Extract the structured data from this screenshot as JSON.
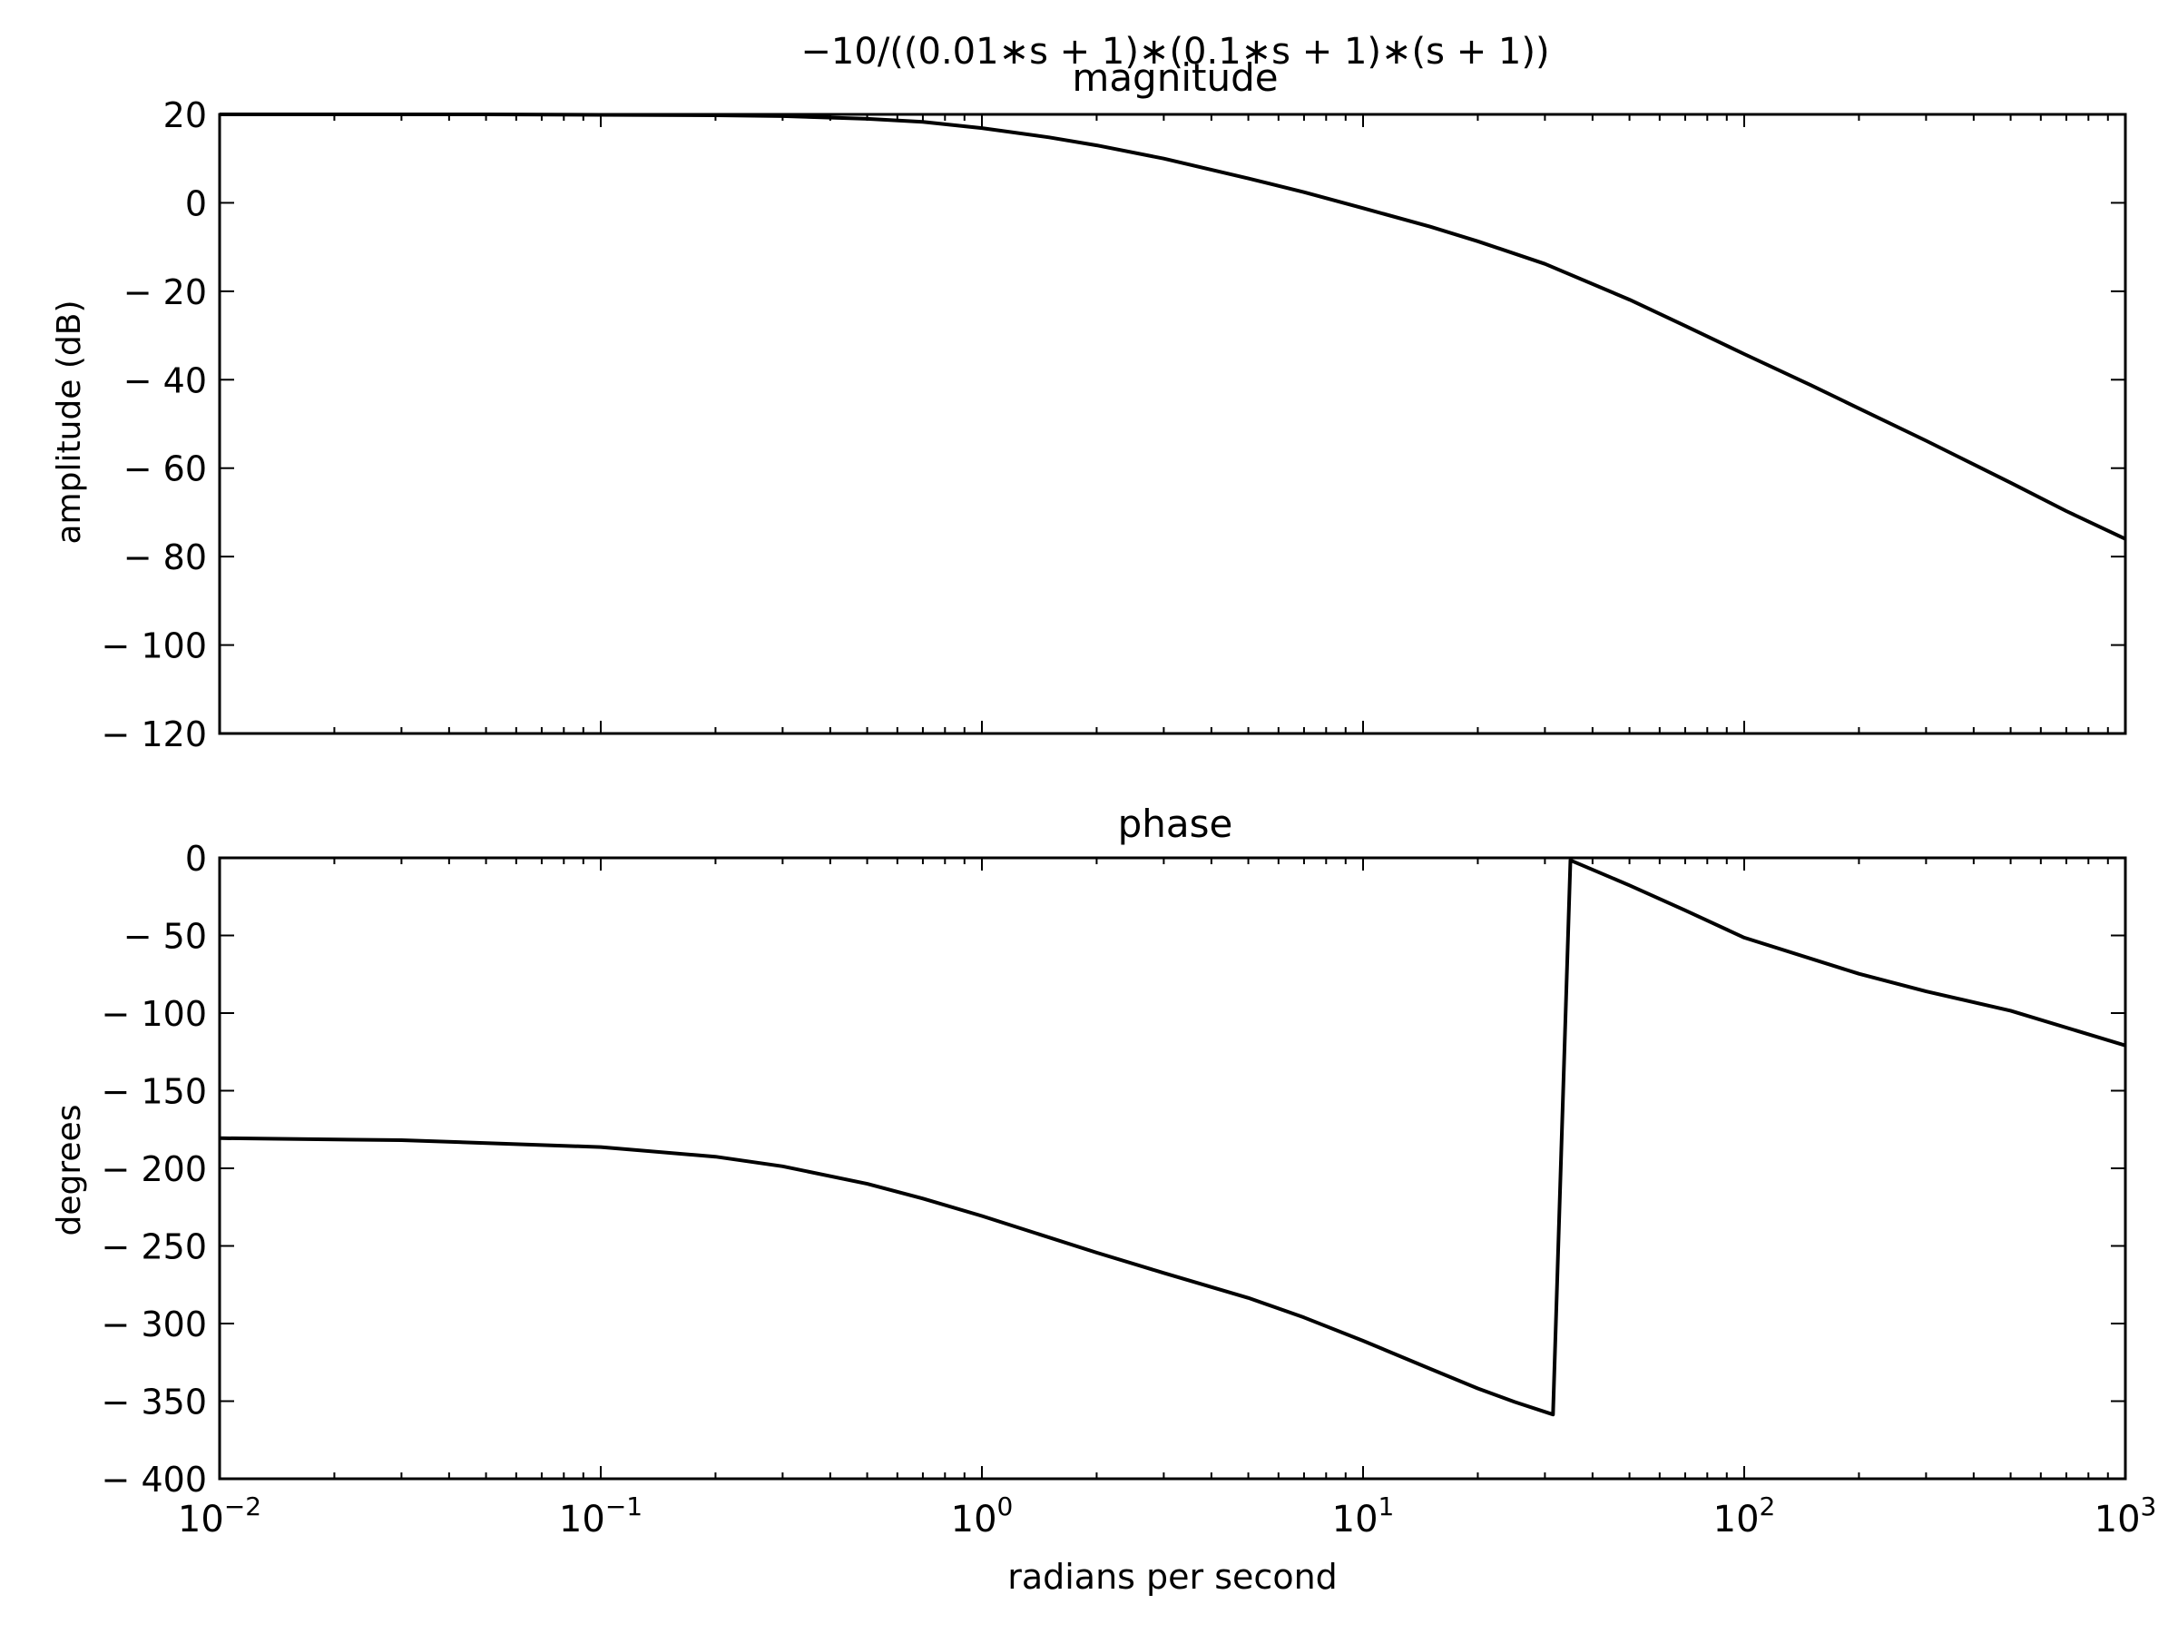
{
  "figure": {
    "suptitle": "−10/((0.01∗s + 1)∗(0.1∗s + 1)∗(s + 1))",
    "xlabel": "radians per second"
  },
  "chart_data": [
    {
      "type": "line",
      "title": "magnitude",
      "xlabel": "",
      "ylabel": "amplitude (dB)",
      "xscale": "log",
      "xlim": [
        0.01,
        1000
      ],
      "ylim": [
        -120,
        20
      ],
      "grid": false,
      "x_tick_labels_visible": false,
      "yticks": [
        20,
        0,
        -20,
        -40,
        -60,
        -80,
        -100,
        -120
      ],
      "ytick_labels": [
        "20",
        "0",
        "− 20",
        "− 40",
        "− 60",
        "− 80",
        "− 100",
        "− 120"
      ],
      "series": [
        {
          "color": "#000000",
          "x": [
            0.01,
            0.02,
            0.05,
            0.1,
            0.2,
            0.3,
            0.5,
            0.7,
            1,
            1.5,
            2,
            3,
            5,
            7,
            10,
            15,
            20,
            30,
            50,
            70,
            100,
            150,
            200,
            300,
            500,
            700,
            1000
          ],
          "y": [
            20.0,
            20.0,
            20.0,
            19.9,
            19.8,
            19.6,
            19.0,
            18.3,
            16.9,
            14.8,
            13.0,
            10.0,
            5.5,
            2.4,
            -1.2,
            -5.4,
            -8.7,
            -13.8,
            -21.9,
            -27.8,
            -34.2,
            -41.3,
            -46.5,
            -53.8,
            -63.3,
            -69.7,
            -76.0
          ]
        }
      ]
    },
    {
      "type": "line",
      "title": "phase",
      "xlabel": "radians per second",
      "ylabel": "degrees",
      "xscale": "log",
      "xlim": [
        0.01,
        1000
      ],
      "ylim": [
        -400,
        0
      ],
      "grid": false,
      "xticks": [
        0.01,
        0.1,
        1,
        10,
        100,
        1000
      ],
      "xtick_labels": [
        {
          "base": "10",
          "exp": "−2"
        },
        {
          "base": "10",
          "exp": "−1"
        },
        {
          "base": "10",
          "exp": "0"
        },
        {
          "base": "10",
          "exp": "1"
        },
        {
          "base": "10",
          "exp": "2"
        },
        {
          "base": "10",
          "exp": "3"
        }
      ],
      "yticks": [
        0,
        -50,
        -100,
        -150,
        -200,
        -250,
        -300,
        -350,
        -400
      ],
      "ytick_labels": [
        "0",
        "− 50",
        "− 100",
        "− 150",
        "− 200",
        "− 250",
        "− 300",
        "− 350",
        "− 400"
      ],
      "series": [
        {
          "color": "#000000",
          "x": [
            0.01,
            0.03,
            0.1,
            0.2,
            0.3,
            0.5,
            0.7,
            1,
            2,
            3,
            5,
            7,
            10,
            15,
            20,
            25,
            31.5,
            35,
            50,
            70,
            100,
            200,
            300,
            500,
            1000
          ],
          "y": [
            -180.6,
            -181.9,
            -186.3,
            -192.5,
            -198.7,
            -210.0,
            -219.5,
            -230.7,
            -254.3,
            -267.4,
            -283.5,
            -296.1,
            -311.1,
            -329.2,
            -341.8,
            -350.5,
            -358.6,
            -1.6,
            -17.7,
            -33.8,
            -51.4,
            -74.7,
            -86.0,
            -98.5,
            -120.9
          ]
        }
      ]
    }
  ]
}
